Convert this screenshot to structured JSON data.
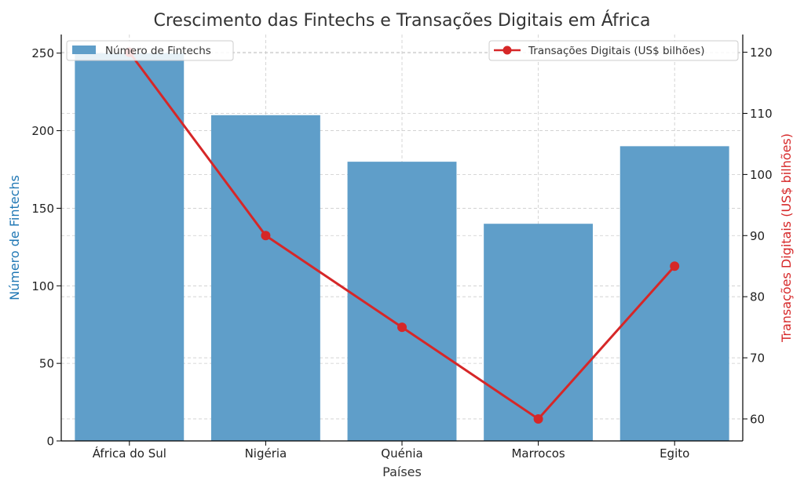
{
  "chart_data": {
    "type": "bar",
    "title": "Crescimento das Fintechs e Transações Digitais em África",
    "xlabel": "Países",
    "ylabel": "Número de Fintechs",
    "ylabel_right": "Transações Digitais (US$ bilhões)",
    "categories": [
      "África do Sul",
      "Nigéria",
      "Quénia",
      "Marrocos",
      "Egito"
    ],
    "series": [
      {
        "name": "Número de Fintechs",
        "type": "bar",
        "axis": "left",
        "color": "#5f9ec9",
        "values": [
          250,
          210,
          180,
          140,
          190
        ]
      },
      {
        "name": "Transações Digitais (US$ bilhões)",
        "type": "line",
        "axis": "right",
        "color": "#d62728",
        "values": [
          120,
          90,
          75,
          60,
          85
        ]
      }
    ],
    "ylim": [
      0,
      262
    ],
    "ylim_right": [
      56.4,
      122.9
    ],
    "yticks": [
      0,
      50,
      100,
      150,
      200,
      250
    ],
    "yticks_right": [
      60,
      70,
      80,
      90,
      100,
      110,
      120
    ],
    "left_label_color": "#1f77b4",
    "right_label_color": "#d62728",
    "grid": true,
    "legend_bar_position": "top-left",
    "legend_line_position": "top-right"
  }
}
